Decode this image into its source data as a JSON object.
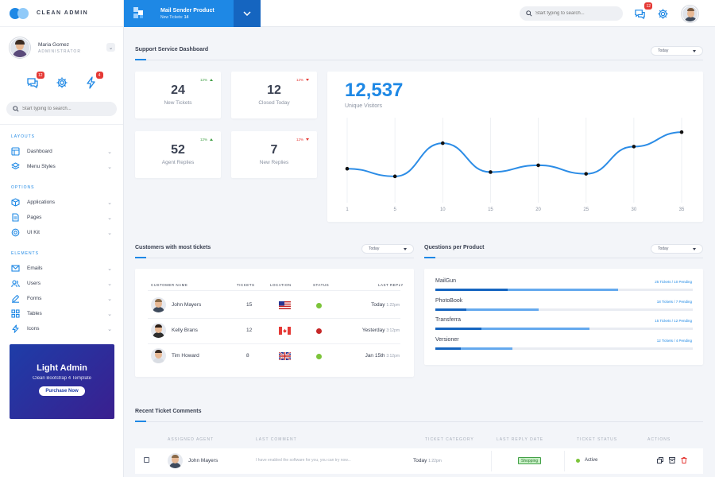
{
  "brand": {
    "name": "CLEAN ADMIN"
  },
  "user": {
    "name": "Maria Gomez",
    "role": "ADMINISTRATOR"
  },
  "sidebar": {
    "icons": [
      {
        "icon": "chat-icon",
        "badge": "12"
      },
      {
        "icon": "gear-icon",
        "badge": ""
      },
      {
        "icon": "bolt-icon",
        "badge": "4"
      }
    ],
    "search_placeholder": "Start typing to search...",
    "sections": [
      {
        "title": "LAYOUTS",
        "items": [
          {
            "label": "Dashboard",
            "icon": "layout-icon"
          },
          {
            "label": "Menu Styles",
            "icon": "layers-icon"
          }
        ]
      },
      {
        "title": "OPTIONS",
        "items": [
          {
            "label": "Applications",
            "icon": "box-icon"
          },
          {
            "label": "Pages",
            "icon": "file-icon"
          },
          {
            "label": "UI Kit",
            "icon": "lifebuoy-icon"
          }
        ]
      },
      {
        "title": "ELEMENTS",
        "items": [
          {
            "label": "Emails",
            "icon": "mail-icon"
          },
          {
            "label": "Users",
            "icon": "users-icon"
          },
          {
            "label": "Forms",
            "icon": "edit-icon"
          },
          {
            "label": "Tables",
            "icon": "grid-icon"
          },
          {
            "label": "Icons",
            "icon": "bolt-icon"
          }
        ]
      }
    ],
    "promo": {
      "title": "Light Admin",
      "subtitle": "Clean Bootstrap 4 Template",
      "button": "Purchase Now"
    }
  },
  "topbar": {
    "product_name": "Mail Sender Product",
    "product_meta_label": "New Tickets:",
    "product_meta_value": "14",
    "search_placeholder": "Start typing to search...",
    "chat_badge": "12"
  },
  "dashboard": {
    "title": "Support Service Dashboard",
    "filter": "Today",
    "stats": [
      {
        "value": "24",
        "label": "New Tickets",
        "change": "12%",
        "dir": "up"
      },
      {
        "value": "12",
        "label": "Closed Today",
        "change": "12%",
        "dir": "down"
      },
      {
        "value": "52",
        "label": "Agent Replies",
        "change": "12%",
        "dir": "up"
      },
      {
        "value": "7",
        "label": "New Replies",
        "change": "12%",
        "dir": "down"
      }
    ],
    "visitors": {
      "value": "12,537",
      "label": "Unique Visitors"
    }
  },
  "chart_data": {
    "type": "line",
    "x": [
      1,
      5,
      10,
      15,
      20,
      25,
      30,
      35
    ],
    "series": [
      {
        "values": [
          40,
          31,
          70,
          36,
          44,
          34,
          66,
          83
        ]
      }
    ],
    "ylim": [
      0,
      100
    ],
    "grid": true,
    "line_color": "#2b8ce6"
  },
  "customers": {
    "title": "Customers with most tickets",
    "filter": "Today",
    "headers": {
      "name": "CUSTOMER NAME",
      "tickets": "TICKETS",
      "location": "LOCATION",
      "status": "STATUS",
      "last_reply": "LAST REPLY"
    },
    "rows": [
      {
        "name": "John Mayers",
        "tickets": "15",
        "flag": "us-flag-icon",
        "status_color": "#7cc43a",
        "date": "Today",
        "time": "1:22pm"
      },
      {
        "name": "Kelly Brans",
        "tickets": "12",
        "flag": "ca-flag-icon",
        "status_color": "#c62828",
        "date": "Yesterday",
        "time": "3:12pm"
      },
      {
        "name": "Tim Howard",
        "tickets": "8",
        "flag": "uk-flag-icon",
        "status_color": "#7cc43a",
        "date": "Jan 15th",
        "time": "3:12pm"
      }
    ]
  },
  "questions": {
    "title": "Questions per Product",
    "filter": "Today",
    "items": [
      {
        "name": "MailGun",
        "tickets": "25 Tickets",
        "pending": "10 Pending",
        "total_pct": 0.71,
        "pending_pct": 0.28
      },
      {
        "name": "PhotoBook",
        "tickets": "18 Tickets",
        "pending": "7 Pending",
        "total_pct": 0.4,
        "pending_pct": 0.12
      },
      {
        "name": "Transferra",
        "tickets": "15 Tickets",
        "pending": "12 Pending",
        "total_pct": 0.6,
        "pending_pct": 0.18
      },
      {
        "name": "Versioner",
        "tickets": "12 Tickets",
        "pending": "4 Pending",
        "total_pct": 0.3,
        "pending_pct": 0.1
      }
    ]
  },
  "recent": {
    "title": "Recent Ticket Comments",
    "headers": {
      "agent": "ASSIGNED AGENT",
      "comment": "LAST COMMENT",
      "category": "TICKET CATEGORY",
      "reply": "LAST REPLY DATE",
      "status": "TICKET STATUS",
      "actions": "ACTIONS"
    },
    "row": {
      "agent": "John Mayers",
      "comment": "I have enabled the software for you, you can try now...",
      "date": "Today",
      "time": "1:22pm",
      "category": "Shopping",
      "status": "Active"
    }
  }
}
